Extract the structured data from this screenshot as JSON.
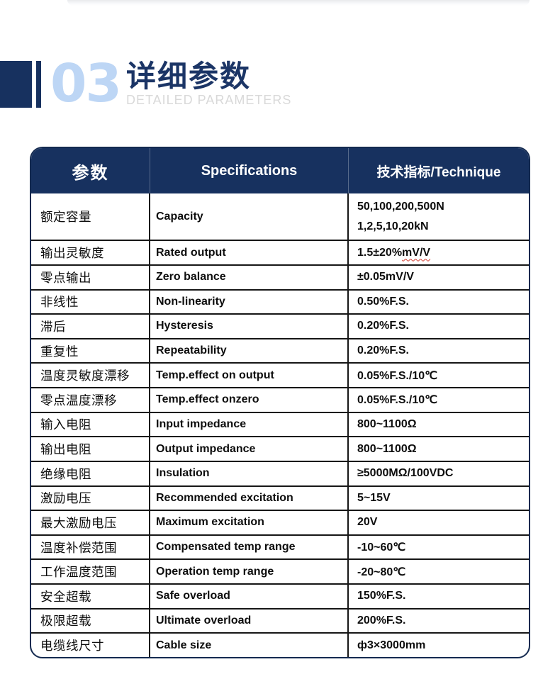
{
  "colors": {
    "navy": "#17315f",
    "light_blue": "#bdd6f5",
    "subtitle_gray": "#d9d9d9",
    "grid_line": "#161616",
    "wavy_red": "#d23a2e"
  },
  "section_header": {
    "number": "03",
    "title_cn": "详细参数",
    "subtitle_en": "DETAILED PARAMETERS"
  },
  "table": {
    "header": {
      "col_param": "参数",
      "col_spec": "Specifications",
      "col_value": "技术指标/Technique"
    },
    "rows": [
      {
        "cn": "额定容量",
        "en": "Capacity",
        "value_lines": [
          "50,100,200,500N",
          "1,2,5,10,20kN"
        ],
        "tall": true
      },
      {
        "cn": "输出灵敏度",
        "en": "Rated output",
        "value": "1.5±20%",
        "value_wavy": "mV/V"
      },
      {
        "cn": "零点输出",
        "en": "Zero balance",
        "value": "±0.05mV/V"
      },
      {
        "cn": "非线性",
        "en": "Non-linearity",
        "value": "0.50%F.S."
      },
      {
        "cn": "滞后",
        "en": "Hysteresis",
        "value": "0.20%F.S."
      },
      {
        "cn": "重复性",
        "en": "Repeatability",
        "value": "0.20%F.S."
      },
      {
        "cn": "温度灵敏度漂移",
        "en": "Temp.effect on output",
        "value": "0.05%F.S./10℃"
      },
      {
        "cn": "零点温度漂移",
        "en": "Temp.effect onzero",
        "value": "0.05%F.S./10℃"
      },
      {
        "cn": "输入电阻",
        "en": "Input impedance",
        "value": "800~1100Ω"
      },
      {
        "cn": "输出电阻",
        "en": "Output impedance",
        "value": "800~1100Ω"
      },
      {
        "cn": "绝缘电阻",
        "en": "Insulation",
        "value": "≥5000MΩ/100VDC"
      },
      {
        "cn": "激励电压",
        "en": "Recommended excitation",
        "value": "5~15V"
      },
      {
        "cn": "最大激励电压",
        "en": "Maximum excitation",
        "value": "20V"
      },
      {
        "cn": "温度补偿范围",
        "en": "Compensated temp range",
        "value": "-10~60℃"
      },
      {
        "cn": "工作温度范围",
        "en": "Operation temp range",
        "value": "-20~80℃"
      },
      {
        "cn": "安全超载",
        "en": "Safe overload",
        "value": "150%F.S."
      },
      {
        "cn": "极限超载",
        "en": "Ultimate overload",
        "value": "200%F.S."
      },
      {
        "cn": "电缆线尺寸",
        "en": "Cable size",
        "value": "ф3×3000mm"
      }
    ]
  }
}
